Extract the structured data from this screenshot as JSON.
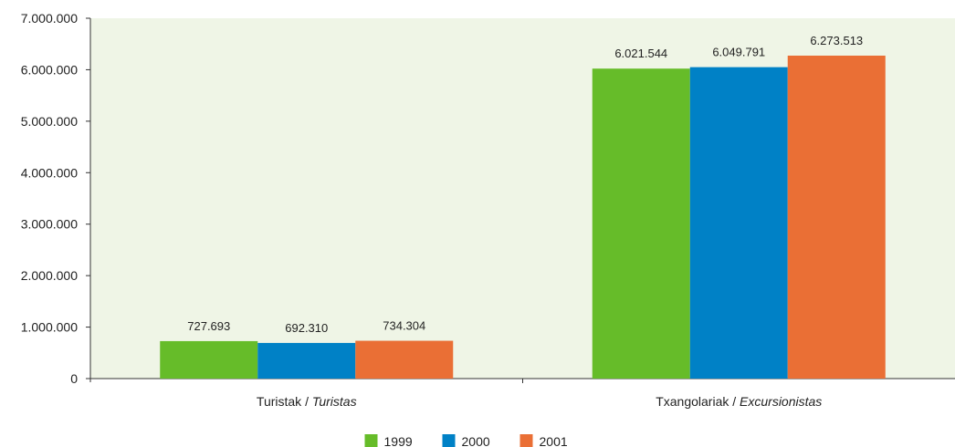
{
  "chart_data": {
    "type": "bar",
    "categories": [
      {
        "main": "Turistak / ",
        "italic": "Turistas"
      },
      {
        "main": "Txangolariak / ",
        "italic": "Excursionistas"
      }
    ],
    "series": [
      {
        "name": "1999",
        "color": "#66bc29",
        "values": [
          727693,
          6021544
        ],
        "labels": [
          "727.693",
          "6.021.544"
        ]
      },
      {
        "name": "2000",
        "color": "#0081c6",
        "values": [
          692310,
          6049791
        ],
        "labels": [
          "692.310",
          "6.049.791"
        ]
      },
      {
        "name": "2001",
        "color": "#ea6f35",
        "values": [
          734304,
          6273513
        ],
        "labels": [
          "734.304",
          "6.273.513"
        ]
      }
    ],
    "ylim": [
      0,
      7000000
    ],
    "yticks": [
      {
        "value": 0,
        "label": "0"
      },
      {
        "value": 1000000,
        "label": "1.000.000"
      },
      {
        "value": 2000000,
        "label": "2.000.000"
      },
      {
        "value": 3000000,
        "label": "3.000.000"
      },
      {
        "value": 4000000,
        "label": "4.000.000"
      },
      {
        "value": 5000000,
        "label": "5.000.000"
      },
      {
        "value": 6000000,
        "label": "6.000.000"
      },
      {
        "value": 7000000,
        "label": "7.000.000"
      }
    ],
    "plot_background": "#eff5e6",
    "legend_position": "bottom-center",
    "grid": false
  }
}
